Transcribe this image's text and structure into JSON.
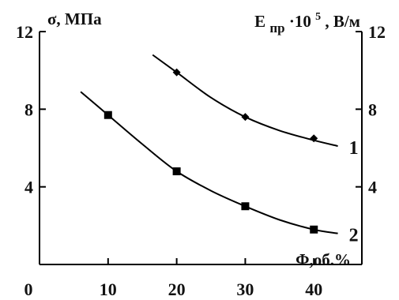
{
  "chart_data": {
    "type": "scatter",
    "title": "",
    "xlabel": "Φ,об.%",
    "ylabel_left": "σ, МПа",
    "ylabel_right": {
      "base": "E",
      "subscript": "пр",
      "mid": "·10",
      "superscript": "5",
      "tail": ", В/м"
    },
    "xlim": [
      0,
      47
    ],
    "ylim_left": [
      0,
      12
    ],
    "ylim_right": [
      0,
      12
    ],
    "x_ticks": [
      {
        "value": 0,
        "label": "0"
      },
      {
        "value": 10,
        "label": "10"
      },
      {
        "value": 20,
        "label": "20"
      },
      {
        "value": 30,
        "label": "30"
      },
      {
        "value": 40,
        "label": "40"
      }
    ],
    "y_ticks_left": [
      {
        "value": 4,
        "label": "4"
      },
      {
        "value": 8,
        "label": "8"
      },
      {
        "value": 12,
        "label": "12"
      }
    ],
    "y_ticks_right": [
      {
        "value": 4,
        "label": "4"
      },
      {
        "value": 8,
        "label": "8"
      },
      {
        "value": 12,
        "label": "12"
      }
    ],
    "grid": false,
    "series": [
      {
        "name": "1",
        "marker": "diamond",
        "color": "#000000",
        "points": [
          {
            "x": 20,
            "y": 9.9
          },
          {
            "x": 30,
            "y": 7.6
          },
          {
            "x": 40,
            "y": 6.5
          }
        ],
        "trend": [
          {
            "x": 16.5,
            "y": 10.8
          },
          {
            "x": 20,
            "y": 9.9
          },
          {
            "x": 25,
            "y": 8.6
          },
          {
            "x": 30,
            "y": 7.6
          },
          {
            "x": 35,
            "y": 6.9
          },
          {
            "x": 40,
            "y": 6.4
          },
          {
            "x": 43.5,
            "y": 6.1
          }
        ]
      },
      {
        "name": "2",
        "marker": "square",
        "color": "#000000",
        "points": [
          {
            "x": 10,
            "y": 7.7
          },
          {
            "x": 20,
            "y": 4.8
          },
          {
            "x": 30,
            "y": 3.0
          },
          {
            "x": 40,
            "y": 1.8
          }
        ],
        "trend": [
          {
            "x": 6,
            "y": 8.9
          },
          {
            "x": 10,
            "y": 7.7
          },
          {
            "x": 15,
            "y": 6.2
          },
          {
            "x": 20,
            "y": 4.8
          },
          {
            "x": 25,
            "y": 3.8
          },
          {
            "x": 30,
            "y": 3.0
          },
          {
            "x": 35,
            "y": 2.3
          },
          {
            "x": 40,
            "y": 1.8
          },
          {
            "x": 43.5,
            "y": 1.6
          }
        ]
      }
    ]
  }
}
